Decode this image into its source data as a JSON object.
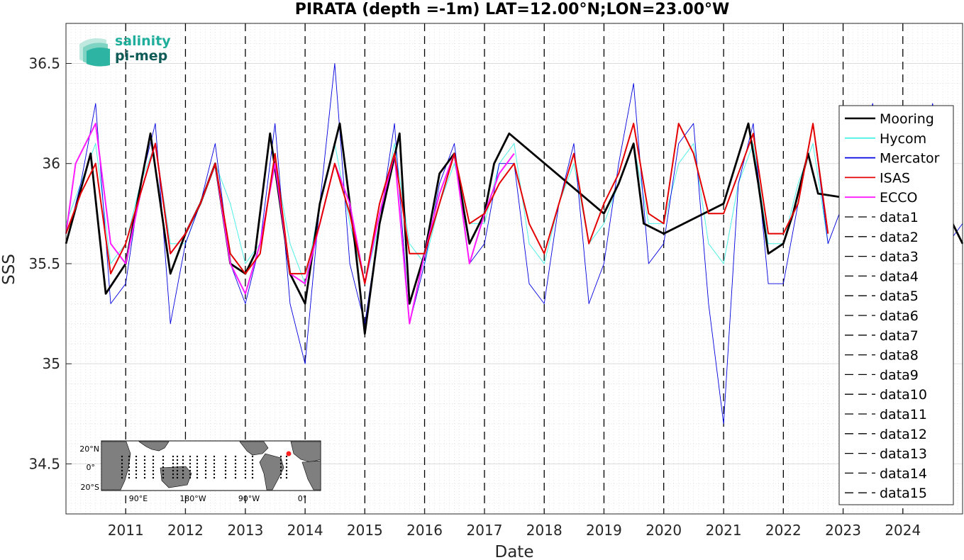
{
  "chart_data": {
    "type": "line",
    "title": "PIRATA (depth =-1m) LAT=12.00°N;LON=23.00°W",
    "xlabel": "Date",
    "ylabel": "SSS",
    "xlim": [
      "2010-01-01",
      "2024-12-31"
    ],
    "ylim": [
      34.25,
      36.7
    ],
    "x_ticks": [
      "2011",
      "2012",
      "2013",
      "2014",
      "2015",
      "2016",
      "2017",
      "2018",
      "2019",
      "2020",
      "2021",
      "2022",
      "2023",
      "2024"
    ],
    "y_ticks": [
      "34.5",
      "35",
      "35.5",
      "36",
      "36.5"
    ],
    "grid": true,
    "legend_position": "right",
    "legend": [
      "Mooring",
      "Hycom",
      "Mercator",
      "ISAS",
      "ECCO",
      "data1",
      "data2",
      "data3",
      "data4",
      "data5",
      "data6",
      "data7",
      "data8",
      "data9",
      "data10",
      "data11",
      "data12",
      "data13",
      "data14",
      "data15"
    ],
    "series": [
      {
        "name": "Mooring",
        "color": "#000000",
        "x": [
          "2010-01-01",
          "2010-06-01",
          "2010-09-01",
          "2011-01-01",
          "2011-06-01",
          "2011-10-01",
          "2012-01-01",
          "2012-04-01",
          "2012-07-01",
          "2012-10-01",
          "2013-01-01",
          "2013-03-01",
          "2013-06-01",
          "2013-10-01",
          "2014-01-01",
          "2014-04-01",
          "2014-08-01",
          "2014-11-01",
          "2015-01-01",
          "2015-04-01",
          "2015-08-01",
          "2015-10-01",
          "2016-01-01",
          "2016-04-01",
          "2016-07-01",
          "2016-10-01",
          "2017-01-01",
          "2017-03-01",
          "2017-06-01",
          "2019-01-01",
          "2019-04-01",
          "2019-07-01",
          "2019-09-01",
          "2020-01-01",
          "2021-01-01",
          "2021-06-01",
          "2021-08-01",
          "2021-10-01",
          "2022-01-01",
          "2022-03-01",
          "2022-06-01",
          "2022-08-01",
          "2024-10-01",
          "2024-12-31"
        ],
        "y": [
          35.6,
          36.05,
          35.35,
          35.5,
          36.15,
          35.45,
          35.65,
          35.8,
          36.0,
          35.5,
          35.45,
          35.55,
          36.15,
          35.45,
          35.3,
          35.8,
          36.2,
          35.6,
          35.15,
          35.7,
          36.15,
          35.3,
          35.55,
          35.95,
          36.05,
          35.6,
          35.75,
          36.0,
          36.15,
          35.75,
          35.9,
          36.1,
          35.7,
          35.65,
          35.8,
          36.2,
          35.9,
          35.55,
          35.6,
          35.75,
          36.05,
          35.85,
          35.75,
          35.6
        ]
      },
      {
        "name": "Hycom",
        "color": "#4ff0e6",
        "x": [
          "2010-01-01",
          "2010-04-01",
          "2010-07-01",
          "2010-10-01",
          "2011-01-01",
          "2011-04-01",
          "2011-07-01",
          "2011-10-01",
          "2012-01-01",
          "2012-04-01",
          "2012-07-01",
          "2012-10-01",
          "2013-01-01",
          "2013-04-01",
          "2013-07-01",
          "2013-10-01",
          "2014-01-01",
          "2014-04-01",
          "2014-07-01",
          "2014-10-01",
          "2015-01-01",
          "2015-04-01",
          "2015-07-01",
          "2015-10-01",
          "2016-01-01",
          "2016-04-01",
          "2016-07-01",
          "2016-10-01",
          "2017-01-01",
          "2017-04-01",
          "2017-07-01",
          "2017-10-01",
          "2018-01-01",
          "2018-04-01",
          "2018-07-01",
          "2018-10-01",
          "2019-01-01",
          "2019-04-01",
          "2019-07-01",
          "2019-10-01",
          "2020-01-01",
          "2020-04-01",
          "2020-07-01",
          "2020-10-01",
          "2021-01-01",
          "2021-04-01",
          "2021-07-01",
          "2021-10-01",
          "2022-01-01",
          "2022-04-01",
          "2022-07-01",
          "2022-10-01"
        ],
        "y": [
          35.7,
          35.9,
          36.1,
          35.5,
          35.6,
          35.9,
          36.1,
          35.6,
          35.6,
          35.8,
          36.0,
          35.8,
          35.5,
          35.6,
          36.0,
          35.6,
          35.4,
          35.8,
          36.1,
          35.7,
          35.4,
          35.7,
          36.1,
          35.6,
          35.5,
          35.8,
          36.0,
          35.7,
          35.7,
          36.0,
          36.1,
          35.6,
          35.5,
          35.8,
          36.0,
          35.6,
          35.7,
          35.9,
          36.1,
          35.7,
          35.7,
          36.0,
          36.1,
          35.6,
          35.5,
          35.9,
          36.1,
          35.6,
          35.6,
          35.9,
          36.1,
          35.6
        ]
      },
      {
        "name": "Mercator",
        "color": "#0000e0",
        "x": [
          "2010-01-01",
          "2010-04-01",
          "2010-07-01",
          "2010-10-01",
          "2011-01-01",
          "2011-04-01",
          "2011-07-01",
          "2011-10-01",
          "2012-01-01",
          "2012-04-01",
          "2012-07-01",
          "2012-10-01",
          "2013-01-01",
          "2013-04-01",
          "2013-07-01",
          "2013-10-01",
          "2014-01-01",
          "2014-04-01",
          "2014-07-01",
          "2014-10-01",
          "2015-01-01",
          "2015-04-01",
          "2015-07-01",
          "2015-10-01",
          "2016-01-01",
          "2016-04-01",
          "2016-07-01",
          "2016-10-01",
          "2017-01-01",
          "2017-04-01",
          "2017-07-01",
          "2017-10-01",
          "2018-01-01",
          "2018-04-01",
          "2018-07-01",
          "2018-10-01",
          "2019-01-01",
          "2019-04-01",
          "2019-07-01",
          "2019-10-01",
          "2020-01-01",
          "2020-04-01",
          "2020-07-01",
          "2020-10-01",
          "2021-01-01",
          "2021-04-01",
          "2021-07-01",
          "2021-10-01",
          "2022-01-01",
          "2022-04-01",
          "2022-07-01",
          "2022-10-01",
          "2023-01-01",
          "2023-04-01",
          "2023-07-01",
          "2023-10-01",
          "2024-01-01",
          "2024-04-01",
          "2024-07-01",
          "2024-10-01",
          "2024-12-31"
        ],
        "y": [
          35.6,
          35.9,
          36.3,
          35.3,
          35.4,
          35.9,
          36.2,
          35.2,
          35.6,
          35.8,
          36.1,
          35.5,
          35.3,
          35.6,
          36.2,
          35.3,
          35.0,
          35.8,
          36.5,
          35.5,
          35.2,
          35.7,
          36.2,
          35.2,
          35.5,
          35.9,
          36.1,
          35.5,
          35.6,
          36.0,
          36.0,
          35.4,
          35.3,
          35.8,
          36.1,
          35.3,
          35.5,
          36.0,
          36.4,
          35.5,
          35.6,
          36.1,
          36.2,
          35.3,
          34.7,
          35.9,
          36.2,
          35.4,
          35.4,
          35.8,
          36.2,
          35.6,
          35.8,
          36.0,
          36.3,
          35.7,
          35.7,
          36.0,
          36.3,
          35.6,
          35.7
        ]
      },
      {
        "name": "ISAS",
        "color": "#e30000",
        "x": [
          "2010-01-01",
          "2010-04-01",
          "2010-07-01",
          "2010-10-01",
          "2011-01-01",
          "2011-04-01",
          "2011-07-01",
          "2011-10-01",
          "2012-01-01",
          "2012-04-01",
          "2012-07-01",
          "2012-10-01",
          "2013-01-01",
          "2013-04-01",
          "2013-07-01",
          "2013-10-01",
          "2014-01-01",
          "2014-04-01",
          "2014-07-01",
          "2014-10-01",
          "2015-01-01",
          "2015-04-01",
          "2015-07-01",
          "2015-10-01",
          "2016-01-01",
          "2016-04-01",
          "2016-07-01",
          "2016-10-01",
          "2017-01-01",
          "2017-04-01",
          "2017-07-01",
          "2017-10-01",
          "2018-01-01",
          "2018-04-01",
          "2018-07-01",
          "2018-10-01",
          "2019-01-01",
          "2019-04-01",
          "2019-07-01",
          "2019-10-01",
          "2020-01-01",
          "2020-04-01",
          "2020-07-01",
          "2020-10-01",
          "2021-01-01",
          "2021-04-01",
          "2021-07-01",
          "2021-10-01",
          "2022-01-01",
          "2022-04-01",
          "2022-07-01",
          "2022-10-01"
        ],
        "y": [
          35.65,
          35.85,
          36.0,
          35.45,
          35.6,
          35.85,
          36.1,
          35.55,
          35.65,
          35.8,
          36.0,
          35.55,
          35.45,
          35.55,
          36.05,
          35.45,
          35.45,
          35.7,
          36.0,
          35.75,
          35.4,
          35.8,
          36.05,
          35.55,
          35.55,
          35.8,
          36.05,
          35.7,
          35.75,
          35.9,
          36.0,
          35.7,
          35.55,
          35.8,
          36.05,
          35.6,
          35.8,
          35.95,
          36.2,
          35.75,
          35.7,
          36.2,
          36.05,
          35.75,
          35.75,
          35.95,
          36.15,
          35.65,
          35.65,
          35.8,
          36.2,
          35.65
        ]
      },
      {
        "name": "ECCO",
        "color": "#ff1aff",
        "x": [
          "2010-01-01",
          "2010-03-01",
          "2010-07-01",
          "2010-10-01",
          "2011-01-01",
          "2011-04-01",
          "2011-07-01",
          "2011-10-01",
          "2012-01-01",
          "2012-04-01",
          "2012-07-01",
          "2012-10-01",
          "2013-01-01",
          "2013-04-01",
          "2013-07-01",
          "2013-10-01",
          "2014-01-01",
          "2014-04-01",
          "2014-07-01",
          "2014-10-01",
          "2015-01-01",
          "2015-04-01",
          "2015-07-01",
          "2015-10-01",
          "2016-01-01",
          "2016-04-01",
          "2016-07-01",
          "2016-10-01",
          "2017-01-01",
          "2017-04-01",
          "2017-07-01"
        ],
        "y": [
          35.65,
          36.0,
          36.2,
          35.6,
          35.5,
          35.85,
          36.1,
          35.55,
          35.65,
          35.8,
          36.0,
          35.5,
          35.35,
          35.6,
          36.0,
          35.45,
          35.4,
          35.7,
          36.0,
          35.8,
          35.4,
          35.75,
          36.05,
          35.2,
          35.55,
          35.85,
          36.05,
          35.5,
          35.75,
          35.95,
          36.05
        ]
      }
    ]
  },
  "logo": {
    "line1": "salinity",
    "line2": "pi-mep"
  },
  "inset_map": {
    "lat_labels": [
      "20°N",
      "0°",
      "20°S"
    ],
    "lon_labels": [
      "90°E",
      "180°W",
      "90°W",
      "0°"
    ]
  }
}
